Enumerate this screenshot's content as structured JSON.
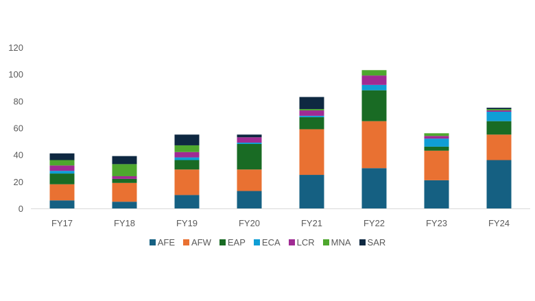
{
  "chart_data": {
    "type": "bar",
    "stacked": true,
    "title": "",
    "xlabel": "",
    "ylabel": "",
    "ylim": [
      0,
      120
    ],
    "yticks": [
      0,
      20,
      40,
      60,
      80,
      100,
      120
    ],
    "grid": false,
    "legend_position": "bottom",
    "categories": [
      "FY17",
      "FY18",
      "FY19",
      "FY20",
      "FY21",
      "FY22",
      "FY23",
      "FY24"
    ],
    "series": [
      {
        "name": "AFE",
        "color": "#156082",
        "values": [
          6,
          5,
          10,
          13,
          25,
          30,
          21,
          36
        ]
      },
      {
        "name": "AFW",
        "color": "#E97132",
        "values": [
          12,
          14,
          19,
          16,
          34,
          35,
          22,
          19
        ]
      },
      {
        "name": "EAP",
        "color": "#196B24",
        "values": [
          8,
          3,
          7,
          19,
          9,
          23,
          3,
          10
        ]
      },
      {
        "name": "ECA",
        "color": "#0F9ED5",
        "values": [
          2,
          0,
          2,
          1,
          1,
          4,
          6,
          7
        ]
      },
      {
        "name": "LCR",
        "color": "#A02B93",
        "values": [
          4,
          2,
          4,
          4,
          4,
          7,
          2,
          1
        ]
      },
      {
        "name": "MNA",
        "color": "#4EA72E",
        "values": [
          4,
          9,
          5,
          0,
          1,
          4,
          2,
          1
        ]
      },
      {
        "name": "SAR",
        "color": "#0E2841",
        "values": [
          5,
          6,
          8,
          2,
          9,
          0,
          0,
          1
        ]
      }
    ]
  }
}
